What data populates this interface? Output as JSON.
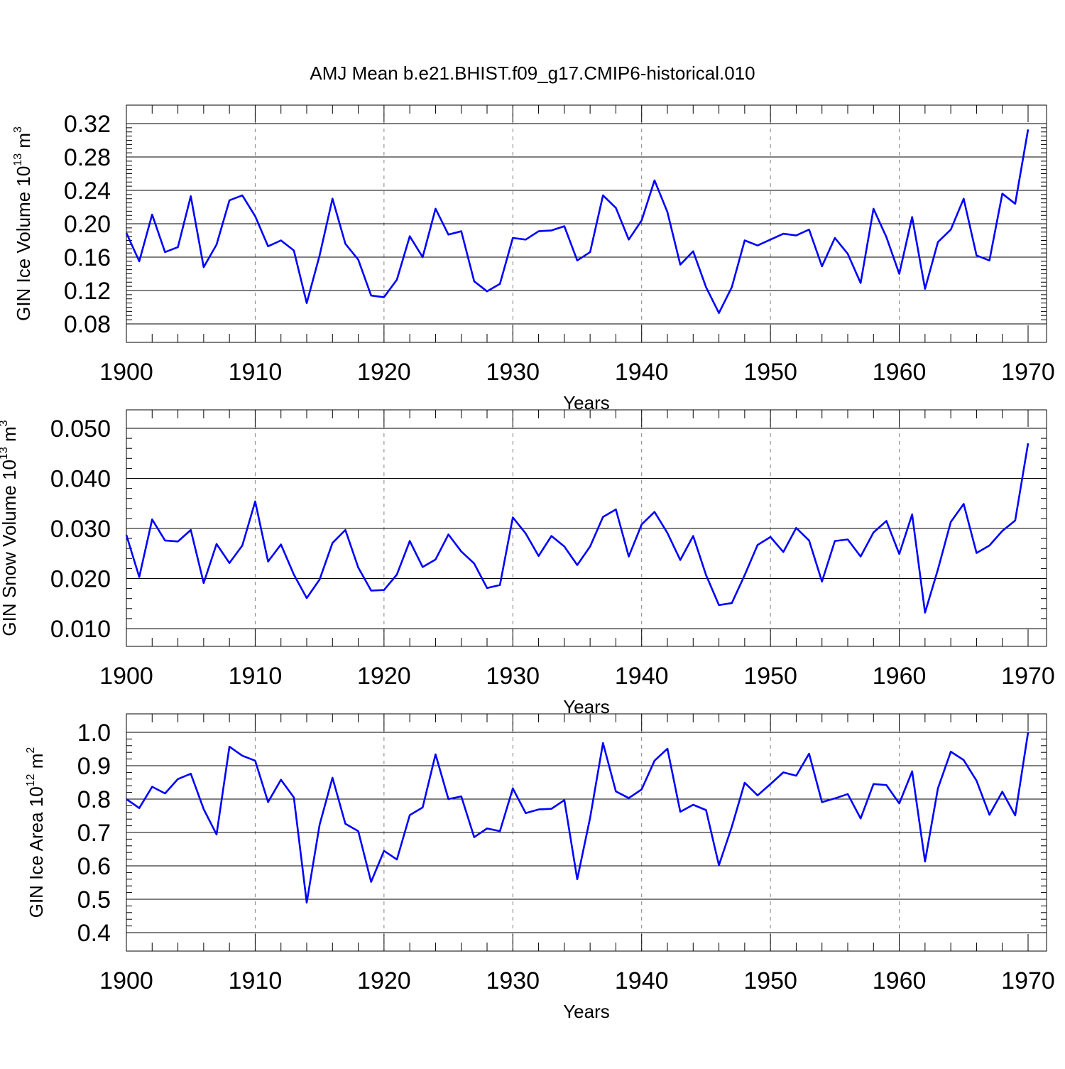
{
  "title": "AMJ Mean b.e21.BHIST.f09_g17.CMIP6-historical.010",
  "colors": {
    "line": "#0000ff",
    "axis": "#000000",
    "grid": "#808080"
  },
  "chart_data": [
    {
      "type": "line",
      "ylabel": {
        "base": "GIN Ice Volume 10",
        "exp": "13",
        "unit": " m",
        "unit_exp": "3"
      },
      "xlabel": "Years",
      "xlim": [
        1900,
        1970
      ],
      "ylim": [
        0.08,
        0.32
      ],
      "yticks": [
        "0.08",
        "0.12",
        "0.16",
        "0.20",
        "0.24",
        "0.28",
        "0.32"
      ],
      "xticks": [
        "1900",
        "1910",
        "1920",
        "1930",
        "1940",
        "1950",
        "1960",
        "1970"
      ],
      "grid": "dashed vertical at decades",
      "series": [
        {
          "x_start": 1900,
          "values": [
            0.189,
            0.155,
            0.211,
            0.166,
            0.172,
            0.233,
            0.148,
            0.175,
            0.228,
            0.234,
            0.209,
            0.173,
            0.18,
            0.168,
            0.105,
            0.162,
            0.23,
            0.176,
            0.157,
            0.114,
            0.112,
            0.133,
            0.185,
            0.16,
            0.218,
            0.187,
            0.191,
            0.131,
            0.119,
            0.128,
            0.183,
            0.181,
            0.191,
            0.192,
            0.197,
            0.156,
            0.166,
            0.234,
            0.219,
            0.181,
            0.204,
            0.252,
            0.214,
            0.151,
            0.167,
            0.124,
            0.093,
            0.124,
            0.18,
            0.174,
            0.181,
            0.188,
            0.186,
            0.193,
            0.149,
            0.183,
            0.164,
            0.129,
            0.218,
            0.184,
            0.14,
            0.208,
            0.122,
            0.178,
            0.193,
            0.23,
            0.162,
            0.156,
            0.236,
            0.224,
            0.313
          ]
        }
      ]
    },
    {
      "type": "line",
      "ylabel": {
        "base": "GIN Snow Volume 10",
        "exp": "13",
        "unit": " m",
        "unit_exp": "3"
      },
      "xlabel": "Years",
      "xlim": [
        1900,
        1970
      ],
      "ylim": [
        0.007,
        0.054
      ],
      "yticks": [
        "0.010",
        "0.020",
        "0.030",
        "0.040",
        "0.050"
      ],
      "xticks": [
        "1900",
        "1910",
        "1920",
        "1930",
        "1940",
        "1950",
        "1960",
        "1970"
      ],
      "grid": "dashed vertical at decades",
      "series": [
        {
          "x_start": 1900,
          "values": [
            0.0287,
            0.0203,
            0.0318,
            0.0276,
            0.0274,
            0.0297,
            0.0191,
            0.0269,
            0.0231,
            0.0266,
            0.0354,
            0.0234,
            0.0268,
            0.0208,
            0.0161,
            0.0198,
            0.0271,
            0.0297,
            0.0222,
            0.0176,
            0.0177,
            0.0208,
            0.0275,
            0.0223,
            0.0238,
            0.0288,
            0.0254,
            0.023,
            0.0181,
            0.0187,
            0.0322,
            0.029,
            0.0245,
            0.0285,
            0.0264,
            0.0227,
            0.0264,
            0.0323,
            0.0338,
            0.0244,
            0.0308,
            0.0333,
            0.0291,
            0.0237,
            0.0285,
            0.0207,
            0.0147,
            0.0151,
            0.0207,
            0.0267,
            0.0283,
            0.0253,
            0.0301,
            0.0276,
            0.0194,
            0.0275,
            0.0278,
            0.0244,
            0.0292,
            0.0315,
            0.0249,
            0.0328,
            0.0132,
            0.0218,
            0.0313,
            0.0349,
            0.0251,
            0.0266,
            0.0295,
            0.0316,
            0.047
          ]
        }
      ]
    },
    {
      "type": "line",
      "ylabel": {
        "base": "GIN Ice Area 10",
        "exp": "12",
        "unit": " m",
        "unit_exp": "2"
      },
      "xlabel": "Years",
      "xlim": [
        1900,
        1970
      ],
      "ylim": [
        0.4,
        1.0
      ],
      "yticks": [
        "0.4",
        "0.5",
        "0.6",
        "0.7",
        "0.8",
        "0.9",
        "1.0"
      ],
      "xticks": [
        "1900",
        "1910",
        "1920",
        "1930",
        "1940",
        "1950",
        "1960",
        "1970"
      ],
      "grid": "dashed vertical at decades",
      "series": [
        {
          "x_start": 1900,
          "values": [
            0.8,
            0.773,
            0.837,
            0.817,
            0.86,
            0.876,
            0.77,
            0.694,
            0.957,
            0.93,
            0.915,
            0.791,
            0.858,
            0.805,
            0.49,
            0.723,
            0.864,
            0.726,
            0.704,
            0.552,
            0.645,
            0.619,
            0.752,
            0.775,
            0.934,
            0.8,
            0.808,
            0.686,
            0.712,
            0.704,
            0.832,
            0.758,
            0.769,
            0.771,
            0.797,
            0.56,
            0.744,
            0.968,
            0.823,
            0.803,
            0.829,
            0.915,
            0.951,
            0.762,
            0.783,
            0.767,
            0.602,
            0.717,
            0.849,
            0.811,
            0.845,
            0.88,
            0.87,
            0.936,
            0.791,
            0.802,
            0.815,
            0.742,
            0.845,
            0.842,
            0.787,
            0.883,
            0.613,
            0.832,
            0.942,
            0.917,
            0.855,
            0.753,
            0.822,
            0.751,
            1.0
          ]
        }
      ]
    }
  ]
}
